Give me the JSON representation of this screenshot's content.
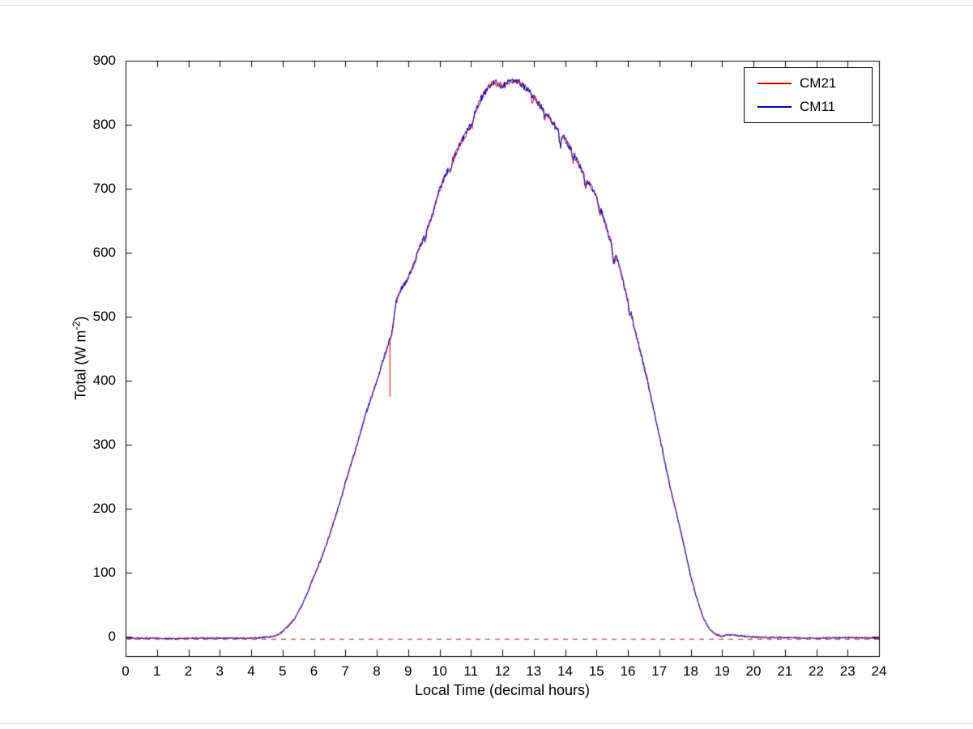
{
  "figure": {
    "background": "#ffffff",
    "xlabel": "Local Time (decimal hours)",
    "ylabel_main": "Total (W m",
    "ylabel_sup": "-2",
    "ylabel_close": ")"
  },
  "chart_data": {
    "type": "line",
    "title": "",
    "xlabel": "Local Time (decimal hours)",
    "ylabel": "Total (W m^-2)",
    "xlim": [
      0,
      24
    ],
    "ylim": [
      -30,
      900
    ],
    "x_ticks": [
      0,
      1,
      2,
      3,
      4,
      5,
      6,
      7,
      8,
      9,
      10,
      11,
      12,
      13,
      14,
      15,
      16,
      17,
      18,
      19,
      20,
      21,
      22,
      23,
      24
    ],
    "y_ticks": [
      0,
      100,
      200,
      300,
      400,
      500,
      600,
      700,
      800,
      900
    ],
    "grid": false,
    "legend": {
      "position": "top-right",
      "entries": [
        {
          "label": "CM21",
          "color": "#e00000"
        },
        {
          "label": "CM11",
          "color": "#0000cc"
        }
      ]
    },
    "zero_line": {
      "y": -3,
      "color": "#aa3333",
      "dash": [
        6,
        6
      ]
    },
    "base_curve": {
      "x": [
        0,
        0.5,
        1,
        1.5,
        2,
        2.5,
        3,
        3.5,
        4,
        4.3,
        4.6,
        4.8,
        5.0,
        5.2,
        5.4,
        5.6,
        5.8,
        6.0,
        6.2,
        6.4,
        6.6,
        6.8,
        7.0,
        7.2,
        7.4,
        7.6,
        7.8,
        8.0,
        8.2,
        8.35,
        8.5,
        8.6,
        8.7,
        8.8,
        9.0,
        9.2,
        9.4,
        9.6,
        9.8,
        10.0,
        10.2,
        10.4,
        10.6,
        10.8,
        11.0,
        11.2,
        11.4,
        11.6,
        11.8,
        12.0,
        12.2,
        12.4,
        12.6,
        12.8,
        13.0,
        13.2,
        13.4,
        13.6,
        13.8,
        14.0,
        14.2,
        14.4,
        14.6,
        14.8,
        15.0,
        15.2,
        15.4,
        15.6,
        15.8,
        16.0,
        16.2,
        16.4,
        16.6,
        16.8,
        17.0,
        17.2,
        17.4,
        17.6,
        17.8,
        18.0,
        18.2,
        18.4,
        18.6,
        18.8,
        19.0,
        19.2,
        19.5,
        20,
        20.5,
        21,
        22,
        23,
        24
      ],
      "y": [
        -2,
        -2,
        -2,
        -3,
        -2,
        -2,
        -2,
        -2,
        -2,
        -1,
        0,
        2,
        8,
        18,
        30,
        48,
        70,
        95,
        118,
        145,
        175,
        205,
        240,
        272,
        305,
        340,
        370,
        400,
        432,
        455,
        478,
        520,
        535,
        545,
        560,
        585,
        612,
        638,
        662,
        700,
        722,
        742,
        765,
        782,
        800,
        828,
        848,
        862,
        866,
        860,
        868,
        870,
        864,
        856,
        845,
        830,
        818,
        804,
        790,
        778,
        760,
        742,
        722,
        706,
        688,
        658,
        625,
        600,
        565,
        525,
        485,
        445,
        405,
        360,
        315,
        268,
        222,
        182,
        140,
        95,
        60,
        30,
        12,
        4,
        1,
        3,
        2,
        0,
        -1,
        -1,
        -2,
        -1,
        -2
      ]
    },
    "peak": {
      "x": 12.4,
      "y": 870
    },
    "series": [
      {
        "name": "CM21",
        "color": "#e00000",
        "spike": {
          "x": 8.42,
          "y": 375
        }
      },
      {
        "name": "CM11",
        "color": "#0000cc"
      }
    ],
    "dips": [
      {
        "x": 9.55,
        "d": 12,
        "w": 0.06
      },
      {
        "x": 10.35,
        "d": 10,
        "w": 0.05
      },
      {
        "x": 11.05,
        "d": 8,
        "w": 0.05
      },
      {
        "x": 12.95,
        "d": 12,
        "w": 0.05
      },
      {
        "x": 13.35,
        "d": 10,
        "w": 0.05
      },
      {
        "x": 13.85,
        "d": 22,
        "w": 0.07
      },
      {
        "x": 14.25,
        "d": 14,
        "w": 0.05
      },
      {
        "x": 14.65,
        "d": 16,
        "w": 0.06
      },
      {
        "x": 15.1,
        "d": 12,
        "w": 0.05
      },
      {
        "x": 15.55,
        "d": 25,
        "w": 0.08
      },
      {
        "x": 16.05,
        "d": 12,
        "w": 0.05
      }
    ]
  }
}
